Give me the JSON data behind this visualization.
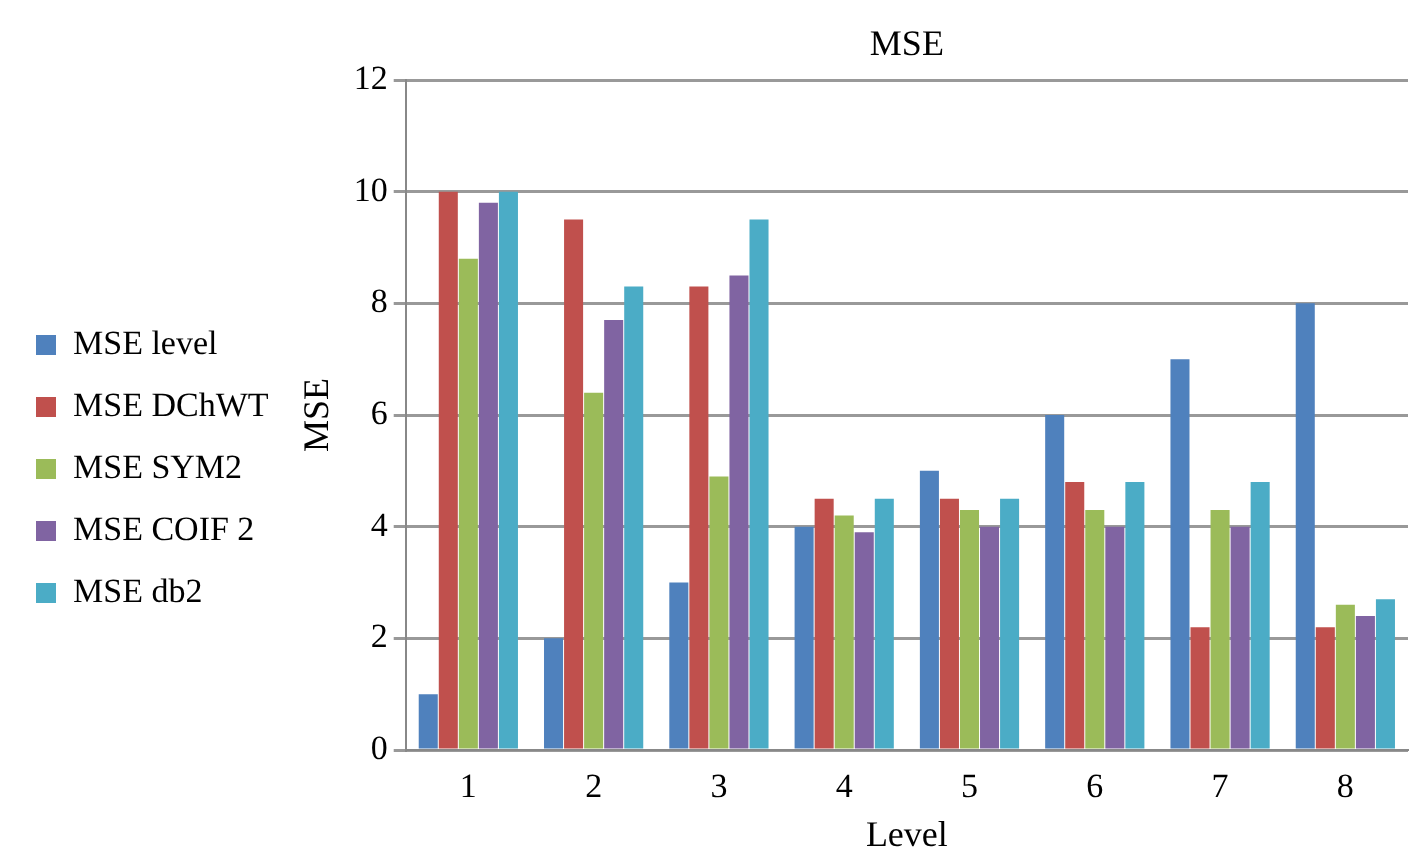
{
  "chart_data": {
    "type": "bar",
    "title": "MSE",
    "xlabel": "Level",
    "ylabel": "MSE",
    "categories": [
      "1",
      "2",
      "3",
      "4",
      "5",
      "6",
      "7",
      "8"
    ],
    "series": [
      {
        "name": "MSE level",
        "color": "#4f81bd",
        "values": [
          1,
          2,
          3,
          4,
          5,
          6,
          7,
          8
        ]
      },
      {
        "name": "MSE DChWT",
        "color": "#c0504d",
        "values": [
          10,
          9.5,
          8.3,
          4.5,
          4.5,
          4.8,
          2.2,
          2.2
        ]
      },
      {
        "name": "MSE SYM2",
        "color": "#9bbb59",
        "values": [
          8.8,
          6.4,
          4.9,
          4.2,
          4.3,
          4.3,
          4.3,
          2.6
        ]
      },
      {
        "name": "MSE COIF 2",
        "color": "#8064a2",
        "values": [
          9.8,
          7.7,
          8.5,
          3.9,
          4.0,
          4.0,
          4.0,
          2.4
        ]
      },
      {
        "name": "MSE db2",
        "color": "#4bacc6",
        "values": [
          10,
          8.3,
          9.5,
          4.5,
          4.5,
          4.8,
          4.8,
          2.7
        ]
      }
    ],
    "ylim": [
      0,
      12
    ],
    "yticks": [
      0,
      2,
      4,
      6,
      8,
      10,
      12
    ],
    "grid": "y",
    "legend": "left"
  }
}
